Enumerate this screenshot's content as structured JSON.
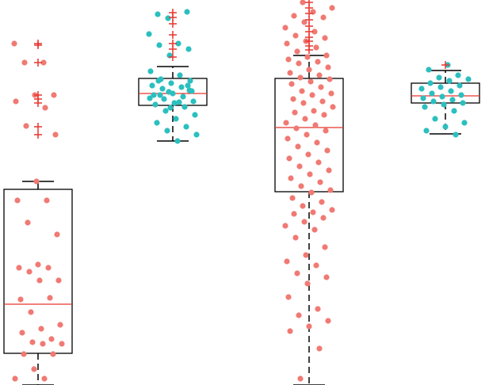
{
  "chart_data": {
    "type": "boxplot",
    "ylim": [
      0,
      486
    ],
    "box_color": "#000000",
    "median_color": "#e8352f",
    "outlier_color": "#e8352f",
    "groups": [
      {
        "point_color": "#f07a73",
        "whisker_low": 0,
        "q1": 40,
        "median": 102,
        "q3": 247,
        "whisker_high": 257,
        "outliers": [
          431,
          429,
          407,
          366,
          361,
          356,
          326,
          316
        ],
        "points": [
          431,
          407,
          407,
          366,
          366,
          358,
          350,
          327,
          316,
          257,
          233,
          233,
          205,
          190,
          152,
          148,
          148,
          143,
          132,
          132,
          108,
          110,
          92,
          76,
          71,
          66,
          58,
          54,
          52,
          52,
          39,
          39,
          20,
          8,
          8
        ]
      },
      {
        "point_color": "#2bbfbf",
        "whisker_low": 308,
        "q1": 353,
        "median": 368,
        "q3": 387,
        "whisker_high": 402,
        "outliers": [
          470,
          464,
          456,
          442,
          431,
          424,
          414
        ],
        "points": [
          468,
          471,
          463,
          443,
          431,
          429,
          424,
          416,
          396,
          391,
          386,
          384,
          381,
          378,
          376,
          374,
          371,
          368,
          366,
          364,
          361,
          358,
          356,
          354,
          351,
          346,
          341,
          336,
          331,
          326,
          321,
          316,
          308,
          384,
          378,
          370,
          362,
          357,
          366,
          372,
          350
        ]
      },
      {
        "point_color": "#f07a73",
        "whisker_low": 0,
        "q1": 244,
        "median": 325,
        "q3": 387,
        "whisker_high": 416,
        "outliers": [
          483,
          476,
          469,
          461,
          453,
          446,
          439,
          434,
          428,
          423
        ],
        "points": [
          483,
          476,
          471,
          466,
          464,
          458,
          451,
          446,
          441,
          438,
          434,
          431,
          426,
          421,
          416,
          414,
          411,
          408,
          406,
          401,
          398,
          394,
          391,
          388,
          386,
          383,
          380,
          376,
          371,
          368,
          366,
          361,
          358,
          356,
          351,
          346,
          344,
          341,
          336,
          331,
          328,
          324,
          321,
          316,
          311,
          306,
          301,
          296,
          291,
          286,
          281,
          276,
          271,
          266,
          261,
          256,
          251,
          246,
          243,
          236,
          231,
          226,
          221,
          218,
          216,
          211,
          206,
          201,
          196,
          186,
          174,
          164,
          156,
          151,
          141,
          136,
          128,
          111,
          96,
          88,
          81,
          74,
          68,
          46,
          8
        ]
      },
      {
        "point_color": "#2bbfbf",
        "whisker_low": 317,
        "q1": 356,
        "median": 365,
        "q3": 381,
        "whisker_high": 397,
        "outliers": [
          404
        ],
        "points": [
          404,
          398,
          391,
          388,
          386,
          384,
          381,
          378,
          376,
          374,
          371,
          368,
          366,
          364,
          362,
          360,
          358,
          356,
          354,
          351,
          346,
          336,
          331,
          326,
          321,
          316
        ]
      }
    ]
  }
}
